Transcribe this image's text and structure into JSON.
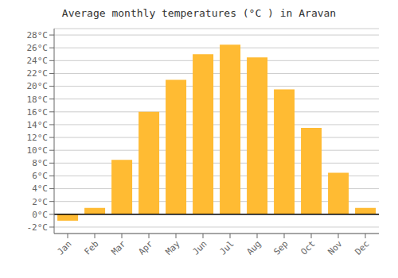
{
  "chart_data": {
    "type": "bar",
    "title": "Average monthly temperatures (°C ) in Aravan",
    "categories": [
      "Jan",
      "Feb",
      "Mar",
      "Apr",
      "May",
      "Jun",
      "Jul",
      "Aug",
      "Sep",
      "Oct",
      "Nov",
      "Dec"
    ],
    "values": [
      -1.0,
      1.0,
      8.5,
      16.0,
      21.0,
      25.0,
      26.5,
      24.5,
      19.5,
      13.5,
      6.5,
      1.0
    ],
    "color": "#FFBB33",
    "ylim": [
      -3,
      29
    ],
    "yticks": [
      {
        "value": -2,
        "label": "-2°C"
      },
      {
        "value": 0,
        "label": "0°C"
      },
      {
        "value": 2,
        "label": "2°C"
      },
      {
        "value": 4,
        "label": "4°C"
      },
      {
        "value": 6,
        "label": "6°C"
      },
      {
        "value": 8,
        "label": "8°C"
      },
      {
        "value": 10,
        "label": "10°C"
      },
      {
        "value": 12,
        "label": "12°C"
      },
      {
        "value": 14,
        "label": "14°C"
      },
      {
        "value": 16,
        "label": "16°C"
      },
      {
        "value": 18,
        "label": "18°C"
      },
      {
        "value": 20,
        "label": "20°C"
      },
      {
        "value": 22,
        "label": "22°C"
      },
      {
        "value": 24,
        "label": "24°C"
      },
      {
        "value": 26,
        "label": "26°C"
      },
      {
        "value": 28,
        "label": "28°C"
      }
    ],
    "grid": true
  }
}
